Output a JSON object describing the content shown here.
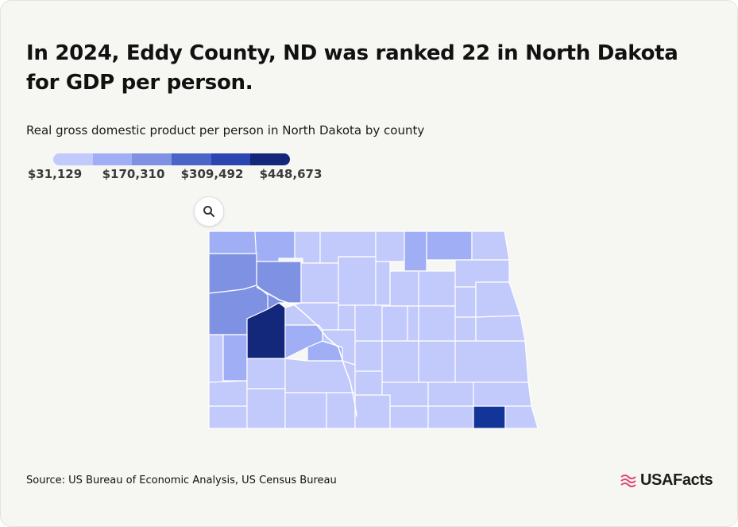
{
  "title": "In 2024, Eddy County, ND was ranked 22 in North Dakota for GDP per person.",
  "subtitle": "Real gross domestic product per person in North Dakota by county",
  "legend": {
    "labels": [
      "$31,129",
      "$170,310",
      "$309,492",
      "$448,673"
    ],
    "colors": [
      "#c2c9fb",
      "#a0aff5",
      "#7e91e3",
      "#4a64c8",
      "#2b46b0",
      "#13287a"
    ]
  },
  "zoom": {
    "icon": "search-icon"
  },
  "source": "Source: US Bureau of Economic Analysis, US Census Bureau",
  "brand": {
    "name": "USAFacts",
    "icon": "flag-icon",
    "color": "#e0457b"
  },
  "map": {
    "state": "North Dakota",
    "highlighted_county": "Eddy County",
    "colors": {
      "low": "#c2c9fb",
      "mid_low": "#a0aff5",
      "mid": "#7e91e3",
      "high": "#13287a",
      "high_mid": "#13359a"
    }
  }
}
